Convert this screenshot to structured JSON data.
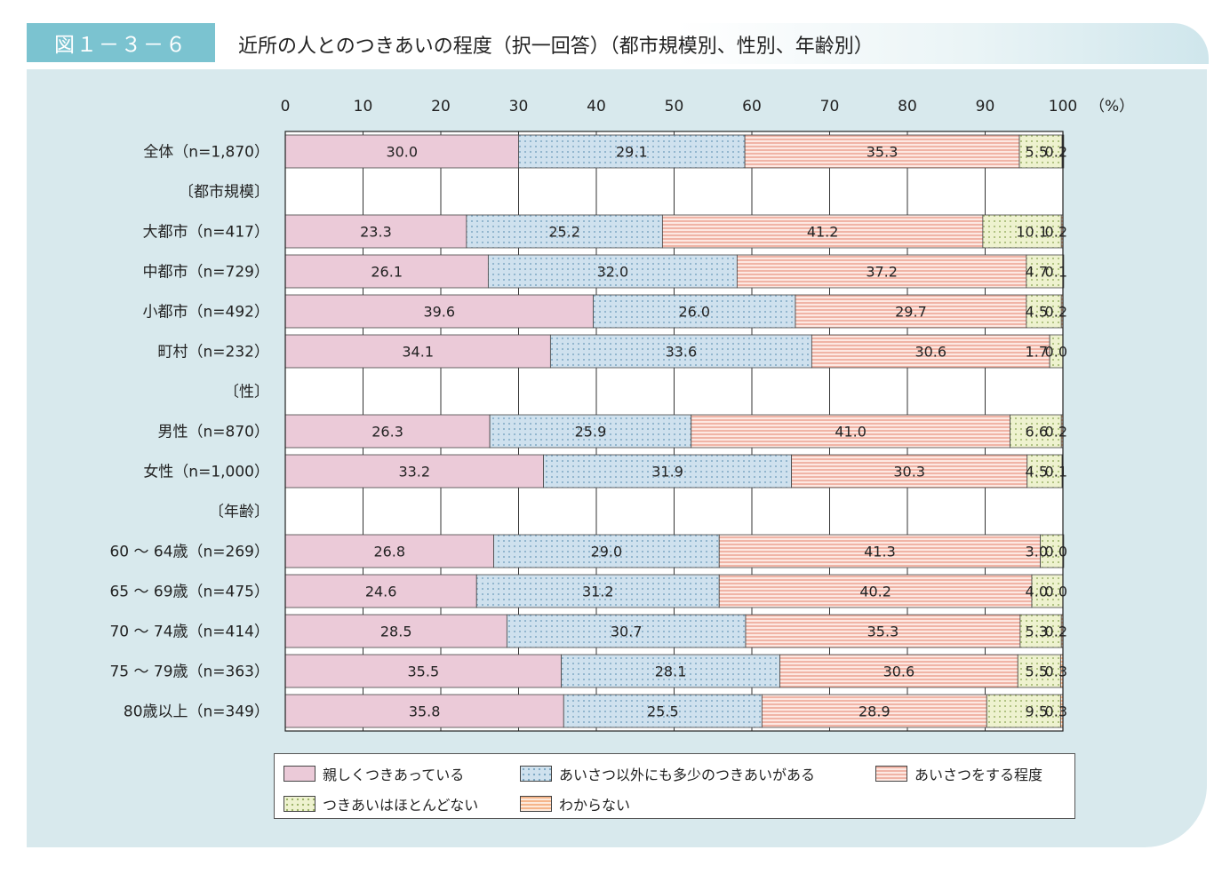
{
  "figure_label": "図１－３－６",
  "title": "近所の人とのつきあいの程度（択一回答）（都市規模別、性別、年齢別）",
  "colors": {
    "fig_label_bg": "#7bc3d0",
    "panel_bg": "#d8e9ed",
    "series": [
      "#ebcad8",
      "#cfe1ee",
      "#f0b4a6",
      "#eef2cf",
      "#f5b58a"
    ]
  },
  "chart_data": {
    "type": "bar",
    "orientation": "horizontal",
    "stacked": true,
    "x_ticks": [
      "0",
      "10",
      "20",
      "30",
      "40",
      "50",
      "60",
      "70",
      "80",
      "90",
      "100"
    ],
    "unit": "（%）",
    "xlim": [
      0,
      100
    ],
    "grid": true,
    "legend_position": "bottom",
    "series_names": [
      "親しくつきあっている",
      "あいさつ以外にも多少のつきあいがある",
      "あいさつをする程度",
      "つきあいはほとんどない",
      "わからない"
    ],
    "rows": [
      {
        "label": "全体（n=1,870）",
        "values": [
          30.0,
          29.1,
          35.3,
          5.5,
          0.2
        ],
        "labels": [
          "30.0",
          "29.1",
          "35.3",
          "5.5",
          "0.2"
        ]
      },
      {
        "label": "〔都市規模〕",
        "header": true
      },
      {
        "label": "大都市（n=417）",
        "values": [
          23.3,
          25.2,
          41.2,
          10.1,
          0.2
        ],
        "labels": [
          "23.3",
          "25.2",
          "41.2",
          "10.1",
          "0.2"
        ]
      },
      {
        "label": "中都市（n=729）",
        "values": [
          26.1,
          32.0,
          37.2,
          4.7,
          0.1
        ],
        "labels": [
          "26.1",
          "32.0",
          "37.2",
          "4.7",
          "0.1"
        ]
      },
      {
        "label": "小都市（n=492）",
        "values": [
          39.6,
          26.0,
          29.7,
          4.5,
          0.2
        ],
        "labels": [
          "39.6",
          "26.0",
          "29.7",
          "4.5",
          "0.2"
        ]
      },
      {
        "label": "町村（n=232）",
        "values": [
          34.1,
          33.6,
          30.6,
          1.7,
          0.0
        ],
        "labels": [
          "34.1",
          "33.6",
          "30.6",
          "1.7",
          "0.0"
        ]
      },
      {
        "label": "〔性〕",
        "header": true
      },
      {
        "label": "男性（n=870）",
        "values": [
          26.3,
          25.9,
          41.0,
          6.6,
          0.2
        ],
        "labels": [
          "26.3",
          "25.9",
          "41.0",
          "6.6",
          "0.2"
        ]
      },
      {
        "label": "女性（n=1,000）",
        "values": [
          33.2,
          31.9,
          30.3,
          4.5,
          0.1
        ],
        "labels": [
          "33.2",
          "31.9",
          "30.3",
          "4.5",
          "0.1"
        ]
      },
      {
        "label": "〔年齢〕",
        "header": true
      },
      {
        "label": "60 ～ 64歳（n=269）",
        "values": [
          26.8,
          29.0,
          41.3,
          3.0,
          0.0
        ],
        "labels": [
          "26.8",
          "29.0",
          "41.3",
          "3.0",
          "0.0"
        ]
      },
      {
        "label": "65 ～ 69歳（n=475）",
        "values": [
          24.6,
          31.2,
          40.2,
          4.0,
          0.0
        ],
        "labels": [
          "24.6",
          "31.2",
          "40.2",
          "4.0",
          "0.0"
        ]
      },
      {
        "label": "70 ～ 74歳（n=414）",
        "values": [
          28.5,
          30.7,
          35.3,
          5.3,
          0.2
        ],
        "labels": [
          "28.5",
          "30.7",
          "35.3",
          "5.3",
          "0.2"
        ]
      },
      {
        "label": "75 ～ 79歳（n=363）",
        "values": [
          35.5,
          28.1,
          30.6,
          5.5,
          0.3
        ],
        "labels": [
          "35.5",
          "28.1",
          "30.6",
          "5.5",
          "0.3"
        ]
      },
      {
        "label": "80歳以上（n=349）",
        "values": [
          35.8,
          25.5,
          28.9,
          9.5,
          0.3
        ],
        "labels": [
          "35.8",
          "25.5",
          "28.9",
          "9.5",
          "0.3"
        ]
      }
    ]
  },
  "legend": {
    "items": [
      {
        "label": "親しくつきあっている"
      },
      {
        "label": "あいさつ以外にも多少のつきあいがある"
      },
      {
        "label": "あいさつをする程度"
      },
      {
        "label": "つきあいはほとんどない"
      },
      {
        "label": "わからない"
      }
    ]
  }
}
